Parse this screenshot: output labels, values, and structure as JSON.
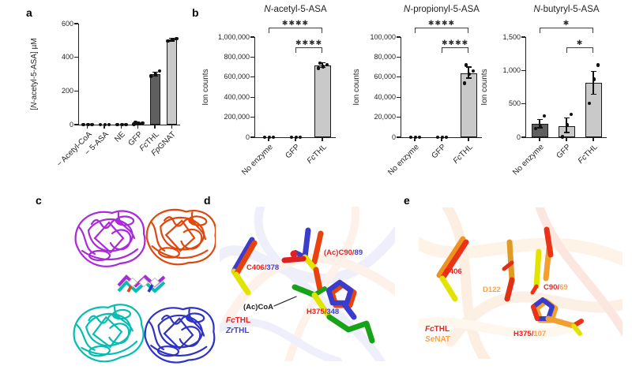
{
  "figure": {
    "panel_labels": {
      "a": "a",
      "b": "b",
      "c": "c",
      "d": "d",
      "e": "e"
    },
    "colors": {
      "bar_dark": "#5f5f5f",
      "bar_light": "#c9c9c9",
      "axis": "#231f20"
    }
  },
  "chart_data": [
    {
      "panel": "a",
      "type": "bar",
      "title": "",
      "ylabel": "[*N*-acetyl-5-ASA] µM",
      "ylim": [
        0,
        600
      ],
      "yticks": [
        {
          "v": 0,
          "label": "0"
        },
        {
          "v": 200,
          "label": "200"
        },
        {
          "v": 400,
          "label": "400"
        },
        {
          "v": 600,
          "label": "600"
        }
      ],
      "categories": [
        "− Acetyl-CoA",
        "− 5-ASA",
        "NE",
        "GFP",
        "*Fc*THL",
        "*Fp*GNAT"
      ],
      "values": [
        0,
        0,
        0,
        5,
        300,
        505
      ],
      "bar_styles": [
        "dark",
        "dark",
        "dark",
        "dark",
        "dark",
        "light"
      ],
      "points": [
        [
          0,
          0,
          0
        ],
        [
          0,
          0,
          0
        ],
        [
          0,
          0,
          0
        ],
        [
          2,
          6,
          10,
          14
        ],
        [
          288,
          298,
          318
        ],
        [
          496,
          504,
          512
        ]
      ],
      "errors": [
        null,
        null,
        null,
        null,
        [
          288,
          312
        ],
        [
          497,
          512
        ]
      ],
      "significance": []
    },
    {
      "panel": "b",
      "type": "bar",
      "title": "*N*-acetyl-5-ASA",
      "ylabel": "Ion counts",
      "ylim": [
        0,
        1000000
      ],
      "yticks": [
        {
          "v": 0,
          "label": "0"
        },
        {
          "v": 200000,
          "label": "200,000"
        },
        {
          "v": 400000,
          "label": "400,000"
        },
        {
          "v": 600000,
          "label": "600,000"
        },
        {
          "v": 800000,
          "label": "800,000"
        },
        {
          "v": 1000000,
          "label": "1,000,000"
        }
      ],
      "categories": [
        "No enzyme",
        "GFP",
        "*Fc*THL"
      ],
      "values": [
        4000,
        4000,
        720000
      ],
      "bar_styles": [
        "dark",
        "light",
        "light"
      ],
      "points": [
        [
          0,
          0,
          0
        ],
        [
          0,
          0,
          0
        ],
        [
          690000,
          705000,
          725000,
          740000
        ]
      ],
      "errors": [
        null,
        null,
        [
          695000,
          745000
        ]
      ],
      "significance": [
        {
          "from": 0,
          "to": 2,
          "stars": "✱✱✱✱"
        },
        {
          "from": 1,
          "to": 2,
          "stars": "✱✱✱✱"
        }
      ]
    },
    {
      "panel": "b",
      "type": "bar",
      "title": "*N*-propionyl-5-ASA",
      "ylabel": "Ion counts",
      "ylim": [
        0,
        100000
      ],
      "yticks": [
        {
          "v": 0,
          "label": "0"
        },
        {
          "v": 20000,
          "label": "20,000"
        },
        {
          "v": 40000,
          "label": "40,000"
        },
        {
          "v": 60000,
          "label": "60,000"
        },
        {
          "v": 80000,
          "label": "80,000"
        },
        {
          "v": 100000,
          "label": "100,000"
        }
      ],
      "categories": [
        "No enzyme",
        "GFP",
        "*Fc*THL"
      ],
      "values": [
        600,
        600,
        64000
      ],
      "bar_styles": [
        "dark",
        "light",
        "light"
      ],
      "points": [
        [
          0,
          0,
          0
        ],
        [
          0,
          0,
          0
        ],
        [
          54000,
          63000,
          66000,
          72000
        ]
      ],
      "errors": [
        null,
        null,
        [
          59000,
          70000
        ]
      ],
      "significance": [
        {
          "from": 0,
          "to": 2,
          "stars": "✱✱✱✱"
        },
        {
          "from": 1,
          "to": 2,
          "stars": "✱✱✱✱"
        }
      ]
    },
    {
      "panel": "b",
      "type": "bar",
      "title": "*N*-butyryl-5-ASA",
      "ylabel": "Ion counts",
      "ylim": [
        0,
        1500
      ],
      "yticks": [
        {
          "v": 0,
          "label": "0"
        },
        {
          "v": 500,
          "label": "500"
        },
        {
          "v": 1000,
          "label": "1,000"
        },
        {
          "v": 1500,
          "label": "1,500"
        }
      ],
      "categories": [
        "No enzyme",
        "GFP",
        "*Fc*THL"
      ],
      "values": [
        200,
        170,
        810
      ],
      "bar_styles": [
        "dark",
        "light",
        "light"
      ],
      "points": [
        [
          130,
          165,
          320
        ],
        [
          5,
          185,
          340
        ],
        [
          505,
          870,
          1080
        ]
      ],
      "errors": [
        [
          140,
          265
        ],
        [
          70,
          290
        ],
        [
          640,
          985
        ]
      ],
      "significance": [
        {
          "from": 0,
          "to": 2,
          "stars": "✱"
        },
        {
          "from": 1,
          "to": 2,
          "stars": "✱"
        }
      ]
    }
  ],
  "panel_c": {
    "description": "FcTHL homotetramer ribbon structure",
    "subunit_colors": [
      "#a92bd8",
      "#e0470e",
      "#06bdb2",
      "#2f33c4"
    ]
  },
  "panel_d": {
    "sep": "/",
    "annotations": {
      "c406_main": "C406",
      "c406_alt": "378",
      "c90_main": "(Ac)C90",
      "c90_alt": "89",
      "coa": "(Ac)CoA",
      "h375_main": "H375",
      "h375_alt": "348"
    },
    "legend_1": "*Fc*THL",
    "legend_2": "*Zr*THL",
    "label_colors": {
      "main": "#e8231f",
      "alt": "#4341d4",
      "ligand": "#1c1c1c"
    }
  },
  "panel_e": {
    "sep": "/",
    "annotations": {
      "c406": "C406",
      "d122": "D122",
      "c90_main": "C90",
      "c90_alt": "69",
      "h375_main": "H375",
      "h375_alt": "107"
    },
    "legend_1": "*Fc*THL",
    "legend_2": "*Se*NAT",
    "label_colors": {
      "main": "#ed2124",
      "alt": "#f7a14a"
    }
  }
}
